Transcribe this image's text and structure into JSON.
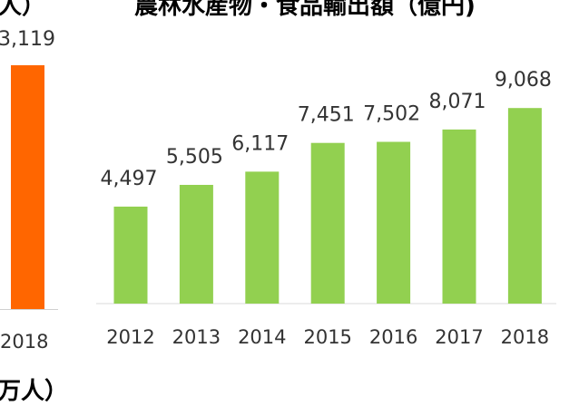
{
  "left_chart_fragment": {
    "title_fragment": "人）",
    "value_fragment": "3,119",
    "year_fragment": "2018",
    "unit_fragment": "万人）",
    "bar_color": "#FF6600"
  },
  "chart_data": {
    "type": "bar",
    "title": "農林水産物・食品輸出額（億円)",
    "categories": [
      "2012",
      "2013",
      "2014",
      "2015",
      "2016",
      "2017",
      "2018"
    ],
    "values": [
      4497,
      5505,
      6117,
      7451,
      7502,
      8071,
      9068
    ],
    "value_labels": [
      "4,497",
      "5,505",
      "6,117",
      "7,451",
      "7,502",
      "8,071",
      "9,068"
    ],
    "bar_color": "#92D050",
    "ylim": [
      0,
      10000
    ],
    "grid": false
  }
}
